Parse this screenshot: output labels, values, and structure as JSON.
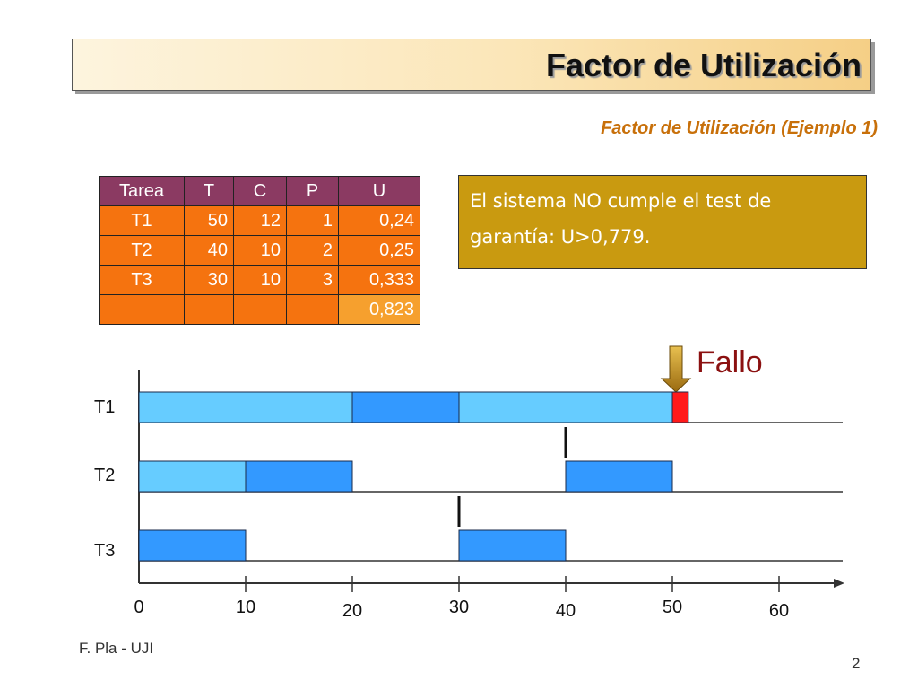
{
  "header": {
    "title": "Factor de Utilización",
    "subtitle": "Factor de Utilización (Ejemplo 1)"
  },
  "task_table": {
    "headers": [
      "Tarea",
      "T",
      "C",
      "P",
      "U"
    ],
    "rows": [
      [
        "T1",
        "50",
        "12",
        "1",
        "0,24"
      ],
      [
        "T2",
        "40",
        "10",
        "2",
        "0,25"
      ],
      [
        "T3",
        "30",
        "10",
        "3",
        "0,333"
      ]
    ],
    "total": "0,823"
  },
  "note": {
    "line1": "El sistema NO cumple el test de",
    "line2": "garantía: U>0,779."
  },
  "timeline": {
    "failure_label": "Fallo",
    "task_labels": [
      "T1",
      "T2",
      "T3"
    ],
    "axis_ticks": [
      "0",
      "10",
      "20",
      "30",
      "40",
      "50",
      "60"
    ],
    "segments": [
      {
        "task": 0,
        "start": 0,
        "end": 20,
        "color": "#66ccff"
      },
      {
        "task": 0,
        "start": 20,
        "end": 30,
        "color": "#3399ff"
      },
      {
        "task": 0,
        "start": 30,
        "end": 50,
        "color": "#66ccff"
      },
      {
        "task": 0,
        "start": 50,
        "end": 51.5,
        "color": "#ff1a1a"
      },
      {
        "task": 1,
        "start": 0,
        "end": 10,
        "color": "#66ccff"
      },
      {
        "task": 1,
        "start": 10,
        "end": 20,
        "color": "#3399ff"
      },
      {
        "task": 1,
        "start": 40,
        "end": 50,
        "color": "#3399ff"
      },
      {
        "task": 2,
        "start": 0,
        "end": 10,
        "color": "#3399ff"
      },
      {
        "task": 2,
        "start": 30,
        "end": 40,
        "color": "#3399ff"
      }
    ],
    "arrivals": [
      {
        "task": 1,
        "time": 40
      },
      {
        "task": 2,
        "time": 30
      }
    ],
    "failure_time": 50
  }
}
